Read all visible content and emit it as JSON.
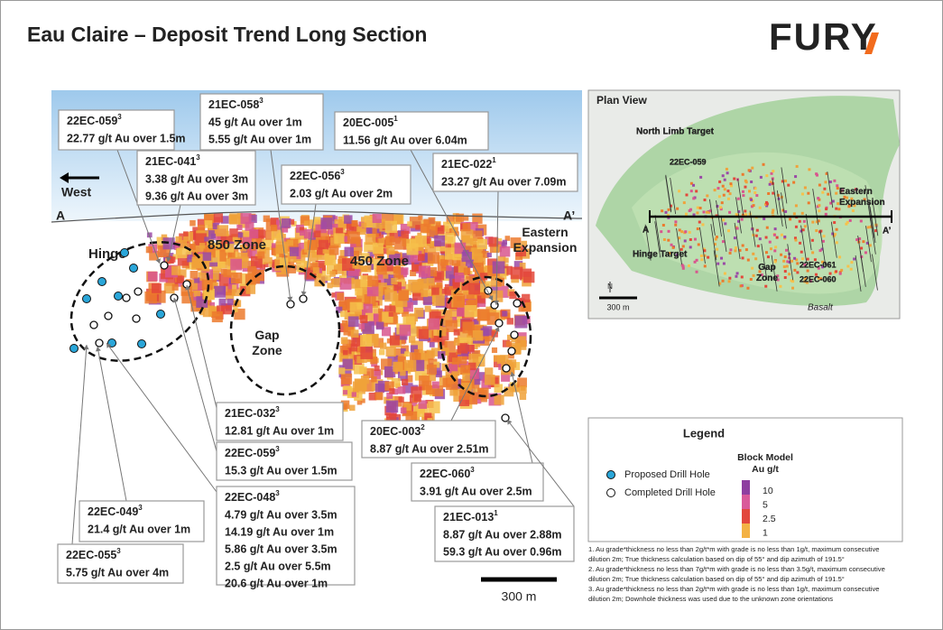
{
  "header": {
    "title": "Eau Claire – Deposit Trend Long Section",
    "logo": "FURY"
  },
  "section": {
    "direction": "West",
    "a_start": "A",
    "a_end": "A’",
    "zones": [
      "Hinge",
      "850 Zone",
      "450 Zone",
      "Gap Zone",
      "Eastern Expansion"
    ],
    "callouts": [
      {
        "hole": "22EC-059",
        "note": "3",
        "lines": [
          "22.77 g/t Au over 1.5m"
        ]
      },
      {
        "hole": "21EC-058",
        "note": "3",
        "lines": [
          "45 g/t Au over 1m",
          "5.55 g/t Au over 1m"
        ]
      },
      {
        "hole": "20EC-005",
        "note": "1",
        "lines": [
          "11.56 g/t Au over 6.04m"
        ]
      },
      {
        "hole": "21EC-041",
        "note": "3",
        "lines": [
          "3.38 g/t Au over 3m",
          "9.36 g/t Au over 3m"
        ]
      },
      {
        "hole": "22EC-056",
        "note": "3",
        "lines": [
          "2.03 g/t Au over 2m"
        ]
      },
      {
        "hole": "21EC-022",
        "note": "1",
        "lines": [
          "23.27 g/t Au over 7.09m"
        ]
      },
      {
        "hole": "21EC-032",
        "note": "3",
        "lines": [
          "12.81 g/t Au over 1m"
        ]
      },
      {
        "hole": "22EC-059",
        "note": "3",
        "lines": [
          "15.3 g/t Au over 1.5m"
        ]
      },
      {
        "hole": "22EC-048",
        "note": "3",
        "lines": [
          "4.79 g/t Au over 3.5m",
          "14.19 g/t Au over 1m",
          "5.86 g/t Au over 3.5m",
          "2.5 g/t Au over 5.5m",
          "20.6 g/t Au over 1m"
        ]
      },
      {
        "hole": "22EC-049",
        "note": "3",
        "lines": [
          "21.4 g/t Au over 1m"
        ]
      },
      {
        "hole": "22EC-055",
        "note": "3",
        "lines": [
          "5.75 g/t Au over 4m"
        ]
      },
      {
        "hole": "20EC-003",
        "note": "2",
        "lines": [
          "8.87 g/t Au over 2.51m"
        ]
      },
      {
        "hole": "22EC-060",
        "note": "3",
        "lines": [
          "3.91 g/t Au over 2.5m"
        ]
      },
      {
        "hole": "21EC-013",
        "note": "1",
        "lines": [
          "8.87 g/t Au over 2.88m",
          "59.3 g/t Au over 0.96m"
        ]
      }
    ],
    "scale": "300 m"
  },
  "plan_view": {
    "title": "Plan View",
    "labels": [
      "North Limb Target",
      "22EC-059",
      "Eastern Expansion",
      "A",
      "A’",
      "Hinge Target",
      "Gap Zone",
      "22EC-061",
      "22EC-060",
      "Basalt",
      "N"
    ],
    "scale": "300 m"
  },
  "legend": {
    "title": "Legend",
    "items": [
      "Proposed Drill Hole",
      "Completed Drill Hole"
    ],
    "block_model_title": [
      "Block Model",
      "Au g/t"
    ],
    "grades": [
      "10",
      "5",
      "2.5",
      "1"
    ]
  },
  "footnotes": [
    "1. Au grade*thickness no less than 2g/t*m with grade is no less than 1g/t, maximum consecutive dilution 2m; True thickness calculation based on dip of 55° and dip azimuth of 191.5°",
    "2. Au grade*thickness no less than 7g/t*m with grade is no less than 3.5g/t, maximum consecutive dilution 2m; True thickness calculation based on dip of 55° and dip azimuth of 191.5°",
    "3. Au grade*thickness no less than 2g/t*m with grade is no less than 1g/t, maximum consecutive dilution 2m; Downhole thickness was used due to the unknown zone orientations"
  ]
}
